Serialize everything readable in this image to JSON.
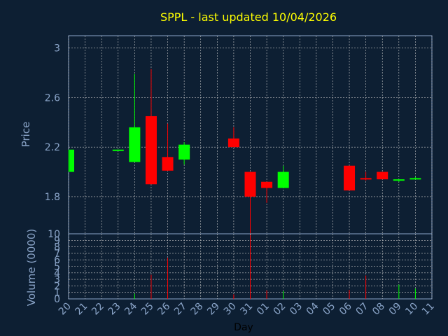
{
  "chart_data": {
    "type": "candlestick",
    "title": "SPPL - last updated 10/04/2026",
    "price_panel": {
      "ylabel": "Price",
      "ylim": [
        1.5,
        3.1
      ],
      "yticks": [
        "1.8",
        "2.2",
        "2.6",
        "3"
      ],
      "yticks_values": [
        1.8,
        2.2,
        2.6,
        3.0
      ]
    },
    "volume_panel": {
      "ylabel": "Volume (0000)",
      "ylim": [
        0,
        10
      ],
      "yticks": [
        "0",
        "1",
        "2",
        "3",
        "4",
        "5",
        "6",
        "7",
        "8",
        "9",
        "10"
      ]
    },
    "xlabel": "Day",
    "x_tick_labels": [
      "20",
      "21",
      "22",
      "23",
      "24",
      "25",
      "26",
      "27",
      "28",
      "29",
      "30",
      "31",
      "01",
      "02",
      "03",
      "04",
      "05",
      "06",
      "07",
      "08",
      "09",
      "10",
      "11"
    ],
    "grid": true,
    "colors": {
      "background": "#0d1f33",
      "up": "#00ff00",
      "down": "#ff0000",
      "axis": "#8aa4c8",
      "title": "#ffff00",
      "grid": "#c8c8c8"
    },
    "candles": [
      {
        "day": "20",
        "open": 2.0,
        "high": 2.18,
        "low": 2.0,
        "close": 2.18,
        "volume": 0.0
      },
      {
        "day": "23",
        "open": 2.17,
        "high": 2.18,
        "low": 2.17,
        "close": 2.18,
        "volume": 0.0
      },
      {
        "day": "24",
        "open": 2.08,
        "high": 2.79,
        "low": 2.08,
        "close": 2.36,
        "volume": 0.8
      },
      {
        "day": "25",
        "open": 2.45,
        "high": 2.83,
        "low": 1.9,
        "close": 1.9,
        "volume": 3.7
      },
      {
        "day": "26",
        "open": 2.12,
        "high": 2.39,
        "low": 2.01,
        "close": 2.01,
        "volume": 6.3
      },
      {
        "day": "27",
        "open": 2.1,
        "high": 2.24,
        "low": 2.06,
        "close": 2.22,
        "volume": 0.0
      },
      {
        "day": "30",
        "open": 2.27,
        "high": 2.36,
        "low": 2.2,
        "close": 2.2,
        "volume": 0.7
      },
      {
        "day": "31",
        "open": 2.0,
        "high": 2.0,
        "low": 1.1,
        "close": 1.8,
        "volume": 9.5
      },
      {
        "day": "01",
        "open": 1.92,
        "high": 1.92,
        "low": 1.75,
        "close": 1.87,
        "volume": 1.3
      },
      {
        "day": "02",
        "open": 1.87,
        "high": 2.05,
        "low": 1.87,
        "close": 2.0,
        "volume": 1.2
      },
      {
        "day": "06",
        "open": 2.05,
        "high": 2.05,
        "low": 1.85,
        "close": 1.85,
        "volume": 1.4
      },
      {
        "day": "07",
        "open": 1.95,
        "high": 2.0,
        "low": 1.93,
        "close": 1.94,
        "volume": 3.6
      },
      {
        "day": "08",
        "open": 2.0,
        "high": 2.0,
        "low": 1.94,
        "close": 1.94,
        "volume": 0.0
      },
      {
        "day": "09",
        "open": 1.93,
        "high": 1.94,
        "low": 1.92,
        "close": 1.94,
        "volume": 2.2
      },
      {
        "day": "10",
        "open": 1.94,
        "high": 1.96,
        "low": 1.94,
        "close": 1.95,
        "volume": 1.6
      }
    ]
  }
}
